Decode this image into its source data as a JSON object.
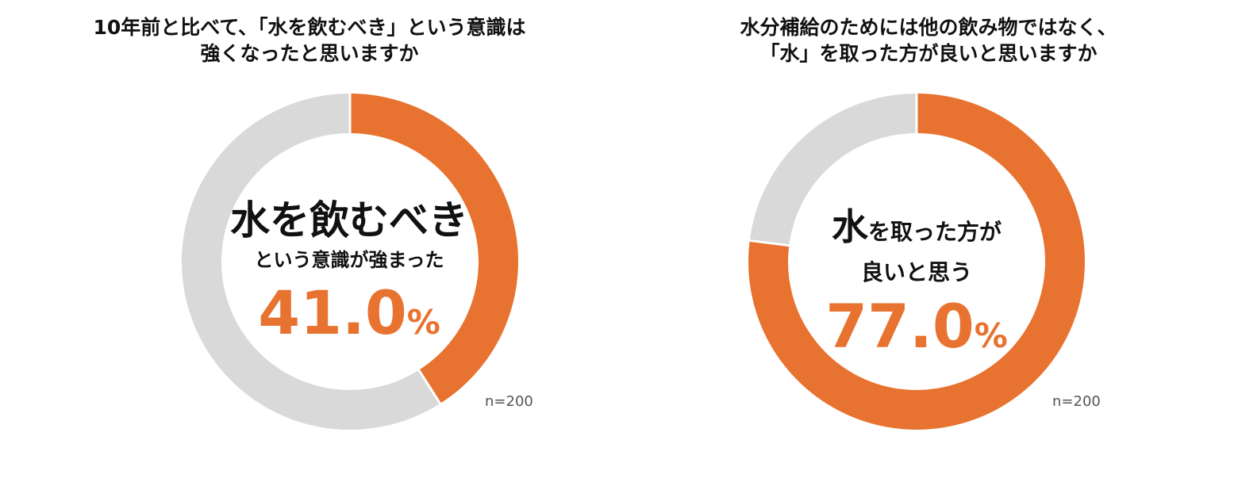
{
  "colors": {
    "accent": "#e8722f",
    "rest": "#d9d9d9",
    "separator": "#ffffff"
  },
  "chart_data": [
    {
      "type": "pie",
      "title_lines": [
        "10年前と比べて、「水を飲むべき」という意識は",
        "強くなったと思いますか"
      ],
      "center_main": "水を飲むべき",
      "center_sub": "という意識が強まった",
      "value": 41.0,
      "value_text": "41.0",
      "unit": "%",
      "n_label": "n=200",
      "slices": [
        {
          "label": "水を飲むべきという意識が強まった",
          "value": 41.0
        },
        {
          "label": "",
          "value": 59.0
        }
      ]
    },
    {
      "type": "pie",
      "title_lines": [
        "水分補給のためには他の飲み物ではなく、",
        "「水」を取った方が良いと思いますか"
      ],
      "center_main_big": "水",
      "center_main_small": "を取った方が",
      "center_sub": "良いと思う",
      "value": 77.0,
      "value_text": "77.0",
      "unit": "%",
      "n_label": "n=200",
      "slices": [
        {
          "label": "水を取った方が良いと思う",
          "value": 77.0
        },
        {
          "label": "",
          "value": 23.0
        }
      ]
    }
  ]
}
